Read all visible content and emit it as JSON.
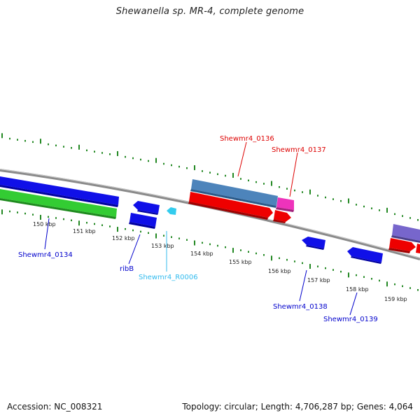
{
  "title": "Shewanella sp. MR-4, complete genome",
  "footer": {
    "accession": "Accession: NC_008321",
    "topology": "Topology: circular; Length: 4,706,287 bp; Genes: 4,064"
  },
  "kbp_labels": [
    "150 kbp",
    "151 kbp",
    "152 kbp",
    "153 kbp",
    "154 kbp",
    "155 kbp",
    "156 kbp",
    "157 kbp",
    "158 kbp",
    "159 kbp"
  ],
  "gene_labels": [
    {
      "id": "l0134",
      "text": "Shewmr4_0134",
      "color": "#0000cc"
    },
    {
      "id": "lribB",
      "text": "ribB",
      "color": "#0000cc"
    },
    {
      "id": "lR0006",
      "text": "Shewmr4_R0006",
      "color": "#33bbee"
    },
    {
      "id": "l0136",
      "text": "Shewmr4_0136",
      "color": "#dd0000"
    },
    {
      "id": "l0137",
      "text": "Shewmr4_0137",
      "color": "#dd0000"
    },
    {
      "id": "l0138",
      "text": "Shewmr4_0138",
      "color": "#0000cc"
    },
    {
      "id": "l0139",
      "text": "Shewmr4_0139",
      "color": "#0000cc"
    }
  ],
  "colors": {
    "tick_green": "#228822",
    "backbone": "#888888",
    "blue": "#1010e8",
    "green": "#33cc33",
    "steel": "#4d84bb",
    "magenta": "#ee33bb",
    "red": "#ee0000",
    "purple": "#7766cc",
    "cyan": "#33ccee"
  }
}
